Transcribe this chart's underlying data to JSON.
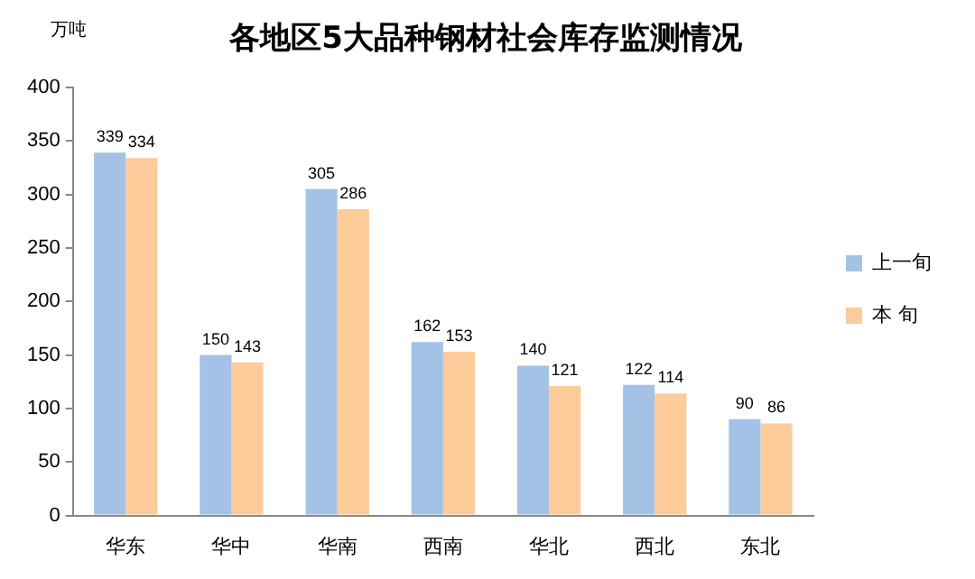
{
  "chart_data": {
    "type": "bar",
    "title": "各地区5大品种钢材社会库存监测情况",
    "ylabel": "万吨",
    "categories": [
      "华东",
      "华中",
      "华南",
      "西南",
      "华北",
      "西北",
      "东北"
    ],
    "series": [
      {
        "name": "上一旬",
        "color": "#a4c2e6",
        "values": [
          339,
          150,
          305,
          162,
          140,
          122,
          90
        ]
      },
      {
        "name": "本 旬",
        "color": "#fecb9a",
        "values": [
          334,
          143,
          286,
          153,
          121,
          114,
          86
        ]
      }
    ],
    "ylim": [
      0,
      400
    ],
    "yticks": [
      0,
      50,
      100,
      150,
      200,
      250,
      300,
      350,
      400
    ],
    "grid": false,
    "legend": "right",
    "data_labels": true
  }
}
